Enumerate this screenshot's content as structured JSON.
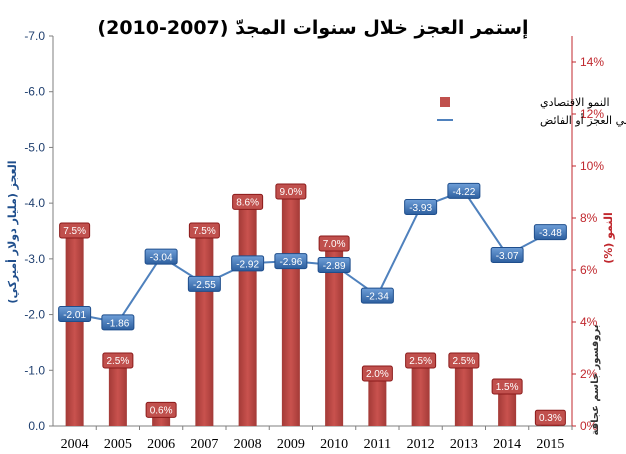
{
  "chart_data": {
    "type": "bar+line",
    "title": "إستمر العجز خلال سنوات المجدّ (2007-2010)",
    "categories": [
      "2004",
      "2005",
      "2006",
      "2007",
      "2008",
      "2009",
      "2010",
      "2011",
      "2012",
      "2013",
      "2014",
      "2015"
    ],
    "series": [
      {
        "name": "النمو الاقتصادي",
        "type": "bar",
        "axis": "right",
        "values": [
          7.5,
          2.5,
          0.6,
          7.5,
          8.6,
          9.0,
          7.0,
          2.0,
          2.5,
          2.5,
          1.5,
          0.3
        ],
        "labels": [
          "7.5%",
          "2.5%",
          "0.6%",
          "7.5%",
          "8.6%",
          "9.0%",
          "7.0%",
          "2.0%",
          "2.5%",
          "2.5%",
          "1.5%",
          "0.3%"
        ],
        "color": "#c0504d"
      },
      {
        "name": "إجمالي العجز أو الفائض",
        "type": "line",
        "axis": "left",
        "values": [
          -2.01,
          -1.86,
          -3.04,
          -2.55,
          -2.92,
          -2.96,
          -2.89,
          -2.34,
          -3.93,
          -4.22,
          -3.07,
          -3.48
        ],
        "labels": [
          "-2.01",
          "-1.86",
          "-3.04",
          "-2.55",
          "-2.92",
          "-2.96",
          "-2.89",
          "-2.34",
          "-3.93",
          "-4.22",
          "-3.07",
          "-3.48"
        ],
        "color": "#4f81bd"
      }
    ],
    "left_axis": {
      "label": "العجز (مليار دولار أميركي)",
      "range": [
        0,
        -7
      ],
      "ticks": [
        "0.0",
        "-1.0",
        "-2.0",
        "-3.0",
        "-4.0",
        "-5.0",
        "-6.0",
        "-7.0"
      ]
    },
    "right_axis": {
      "label": "النمو (%)",
      "range": [
        0,
        15
      ],
      "ticks": [
        "0%",
        "2%",
        "4%",
        "6%",
        "8%",
        "10%",
        "12%",
        "14%"
      ]
    },
    "credit": "بروفسور جاسم عجاقة",
    "grid": false,
    "legend_position": "top-right"
  },
  "colors": {
    "bar_fill": "#c0504d",
    "bar_dark": "#8b1a1a",
    "line": "#4f81bd",
    "marker": "#4f81bd",
    "left_axis": "#1f4e8c",
    "right_axis": "#c0272d"
  }
}
